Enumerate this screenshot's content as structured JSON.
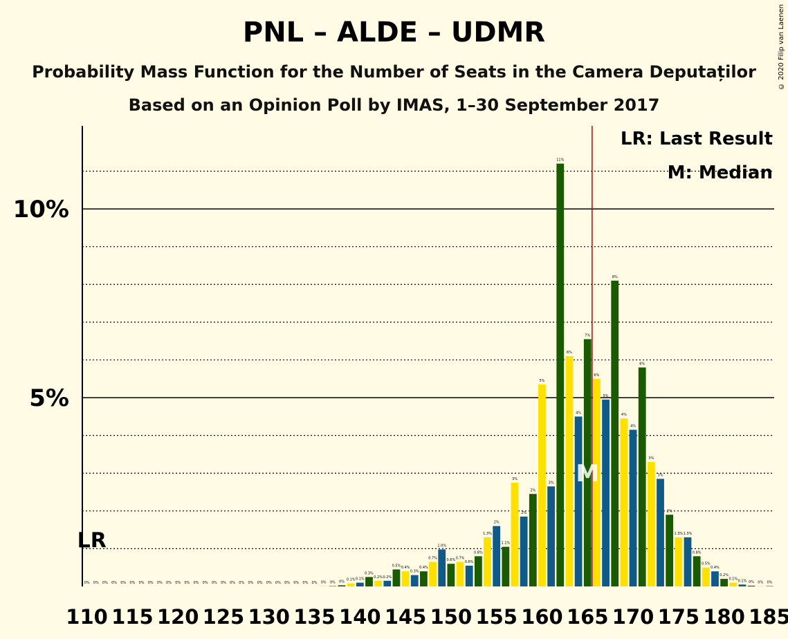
{
  "title": "PNL – ALDE – UDMR",
  "subtitle1": "Probability Mass Function for the Number of Seats in the Camera Deputaților",
  "subtitle2": "Based on an Opinion Poll by IMAS, 1–30 September 2017",
  "copyright": "© 2020 Filip van Laenen",
  "legend": {
    "lr": "LR: Last Result",
    "median": "M: Median"
  },
  "markers": {
    "lr_label": "LR",
    "median_label": "M"
  },
  "colors": {
    "background": "#FFFBE5",
    "blue": "#0F5A87",
    "green": "#1A5A00",
    "yellow": "#FFE000",
    "last_result_line": "#C00000"
  },
  "chart_data": {
    "type": "bar",
    "x": [
      110,
      111,
      112,
      113,
      114,
      115,
      116,
      117,
      118,
      119,
      120,
      121,
      122,
      123,
      124,
      125,
      126,
      127,
      128,
      129,
      130,
      131,
      132,
      133,
      134,
      135,
      136,
      137,
      138,
      139,
      140,
      141,
      142,
      143,
      144,
      145,
      146,
      147,
      148,
      149,
      150,
      151,
      152,
      153,
      154,
      155,
      156,
      157,
      158,
      159,
      160,
      161,
      162,
      163,
      164,
      165,
      166,
      167,
      168,
      169,
      170,
      171,
      172,
      173,
      174,
      175,
      176,
      177,
      178,
      179,
      180,
      181,
      182,
      183,
      184,
      185
    ],
    "values": [
      0,
      0,
      0,
      0,
      0,
      0,
      0,
      0,
      0,
      0,
      0,
      0,
      0,
      0,
      0,
      0,
      0,
      0,
      0,
      0,
      0,
      0,
      0,
      0,
      0,
      0,
      0.01,
      0.01,
      0.03,
      0.08,
      0.1,
      0.25,
      0.15,
      0.15,
      0.45,
      0.4,
      0.3,
      0.4,
      0.65,
      0.98,
      0.6,
      0.65,
      0.55,
      0.8,
      1.3,
      1.6,
      1.05,
      2.75,
      1.85,
      2.45,
      5.35,
      2.65,
      11.2,
      6.1,
      4.5,
      6.55,
      5.5,
      4.95,
      8.1,
      4.45,
      4.15,
      5.8,
      3.3,
      2.85,
      1.9,
      1.3,
      1.3,
      0.8,
      0.5,
      0.4,
      0.2,
      0.1,
      0.05,
      0.02,
      0.01,
      0.01
    ],
    "value_labels": [
      "0%",
      "0%",
      "0%",
      "0%",
      "0%",
      "0%",
      "0%",
      "0%",
      "0%",
      "0%",
      "0%",
      "0%",
      "0%",
      "0%",
      "0%",
      "0%",
      "0%",
      "0%",
      "0%",
      "0%",
      "0%",
      "0%",
      "0%",
      "0%",
      "0%",
      "0%",
      "0%",
      "0%",
      "0%",
      "0.1%",
      "0.1%",
      "0.3%",
      "0.2%",
      "0.2%",
      "0.5%",
      "0.4%",
      "0.3%",
      "0.4%",
      "0.7%",
      "1.0%",
      "0.6%",
      "0.7%",
      "0.6%",
      "0.8%",
      "1.3%",
      "2%",
      "1.1%",
      "3%",
      "2%",
      "2%",
      "5%",
      "3%",
      "11%",
      "6%",
      "4%",
      "7%",
      "6%",
      "5%",
      "8%",
      "4%",
      "4%",
      "6%",
      "3%",
      "3%",
      "2%",
      "1.3%",
      "1.3%",
      "0.8%",
      "0.5%",
      "0.4%",
      "0.2%",
      "0.1%",
      "0.1%",
      "0%",
      "0%",
      "0%"
    ],
    "x_ticks": [
      110,
      115,
      120,
      125,
      130,
      135,
      140,
      145,
      150,
      155,
      160,
      165,
      170,
      175,
      180,
      185
    ],
    "y_ticks": [
      {
        "value": 5,
        "label": "5%"
      },
      {
        "value": 10,
        "label": "10%"
      }
    ],
    "ylim": [
      0,
      12.2
    ],
    "xlim": [
      109.5,
      185.5
    ],
    "minor_gridlines": [
      1,
      2,
      3,
      4,
      6,
      7,
      8,
      9,
      11
    ],
    "last_result_seats": 110,
    "median_seats": 165,
    "majority_line_seats": 165.5
  }
}
